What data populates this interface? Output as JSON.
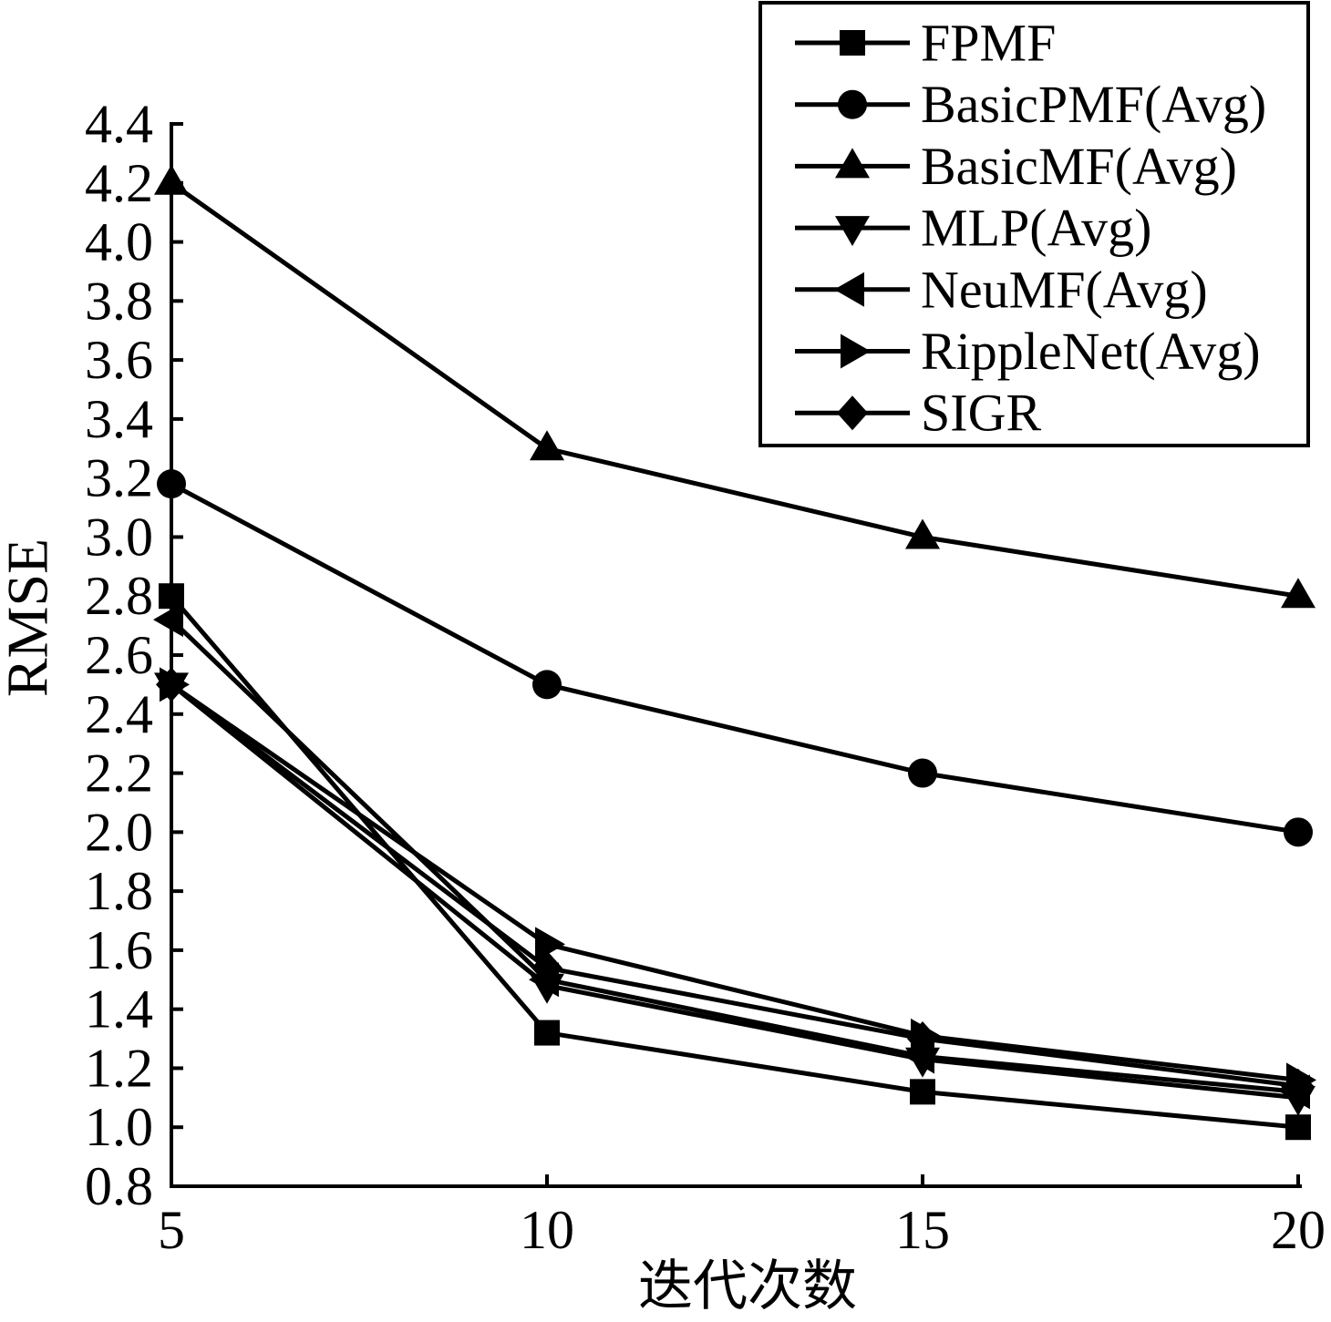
{
  "chart_data": {
    "type": "line",
    "x": [
      5,
      10,
      15,
      20
    ],
    "xlim": [
      5,
      20
    ],
    "ylim": [
      0.8,
      4.4
    ],
    "xlabel": "迭代次数",
    "ylabel": "RMSE",
    "x_ticks": [
      "5",
      "10",
      "15",
      "20"
    ],
    "y_ticks": [
      "0.8",
      "1.0",
      "1.2",
      "1.4",
      "1.6",
      "1.8",
      "2.0",
      "2.2",
      "2.4",
      "2.6",
      "2.8",
      "3.0",
      "3.2",
      "3.4",
      "3.6",
      "3.8",
      "4.0",
      "4.2",
      "4.4"
    ],
    "grid": false,
    "legend_position": "top-right",
    "series": [
      {
        "name": "FPMF",
        "marker": "square",
        "color": "#000000",
        "values": [
          2.8,
          1.32,
          1.12,
          1.0
        ]
      },
      {
        "name": "BasicPMF(Avg)",
        "marker": "circle",
        "color": "#000000",
        "values": [
          3.18,
          2.5,
          2.2,
          2.0
        ]
      },
      {
        "name": "BasicMF(Avg)",
        "marker": "triangle-up",
        "color": "#000000",
        "values": [
          4.2,
          3.3,
          3.0,
          2.8
        ]
      },
      {
        "name": "MLP(Avg)",
        "marker": "triangle-down",
        "color": "#000000",
        "values": [
          2.5,
          1.48,
          1.23,
          1.1
        ]
      },
      {
        "name": "NeuMF(Avg)",
        "marker": "triangle-left",
        "color": "#000000",
        "values": [
          2.72,
          1.5,
          1.24,
          1.12
        ]
      },
      {
        "name": "RippleNet(Avg)",
        "marker": "triangle-right",
        "color": "#000000",
        "values": [
          2.5,
          1.62,
          1.31,
          1.16
        ]
      },
      {
        "name": "SIGR",
        "marker": "diamond",
        "color": "#000000",
        "values": [
          2.5,
          1.54,
          1.3,
          1.14
        ]
      }
    ]
  }
}
